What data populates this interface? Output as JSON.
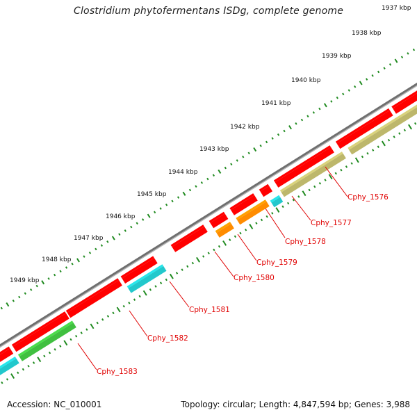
{
  "title": "Clostridium phytofermentans ISDg, complete genome",
  "footer": {
    "accession": "Accession: NC_010001",
    "summary": "Topology: circular; Length: 4,847,594 bp; Genes: 3,988"
  },
  "ruler": {
    "labels": [
      "1937 kbp",
      "1938 kbp",
      "1939 kbp",
      "1940 kbp",
      "1941 kbp",
      "1942 kbp",
      "1943 kbp",
      "1944 kbp",
      "1945 kbp",
      "1946 kbp",
      "1947 kbp",
      "1948 kbp",
      "1949 kbp"
    ]
  },
  "colors": {
    "backbone": "#808080",
    "tick": "#1f8a1f",
    "gene": "#ff0000",
    "gene_label": "#e00000",
    "cyan": "#22c8cc",
    "orange": "#ff8c00",
    "green": "#40c040",
    "khaki": "#bdb76b"
  },
  "genes": [
    {
      "label": "Cphy_1576"
    },
    {
      "label": "Cphy_1577"
    },
    {
      "label": "Cphy_1578"
    },
    {
      "label": "Cphy_1579"
    },
    {
      "label": "Cphy_1580"
    },
    {
      "label": "Cphy_1581"
    },
    {
      "label": "Cphy_1582"
    },
    {
      "label": "Cphy_1583"
    }
  ]
}
